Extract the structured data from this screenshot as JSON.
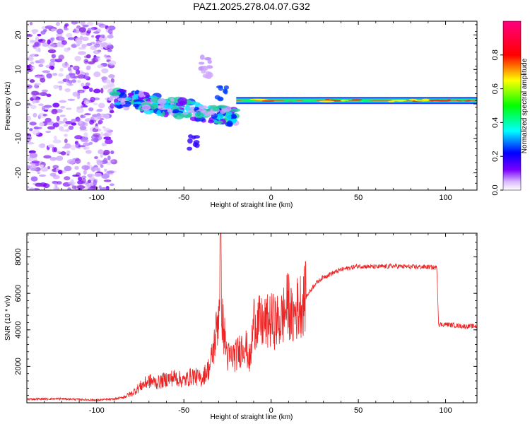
{
  "title": "PAZ1.2025.278.04.07.G32",
  "chart_data": [
    {
      "type": "heatmap",
      "name": "spectrogram",
      "xlabel": "Height of straight line (km)",
      "ylabel": "Frequency (Hz)",
      "xlim": [
        -140,
        118
      ],
      "ylim": [
        -25,
        24
      ],
      "xticks": [
        -100,
        -50,
        0,
        50,
        100
      ],
      "yticks": [
        -20,
        -10,
        0,
        10,
        20
      ],
      "xtick_labels": [
        "-100",
        "-50",
        "0",
        "50",
        "100"
      ],
      "ytick_labels": [
        "-20",
        "-10",
        "0",
        "10",
        "20"
      ],
      "colorbar": {
        "label": "Normalized spectral amplitude",
        "range": [
          0,
          1
        ],
        "ticks": [
          0.0,
          0.2,
          0.4,
          0.6,
          0.8
        ],
        "tick_labels": [
          "0.0",
          "0.2",
          "0.4",
          "0.6",
          "0.8"
        ],
        "colormap": [
          "#ffffff",
          "#7a00ff",
          "#0000ff",
          "#00ffff",
          "#00ff00",
          "#ffff00",
          "#ff0000",
          "#ff0080"
        ]
      },
      "features": [
        {
          "name": "noise-region",
          "x_range": [
            -140,
            -90
          ],
          "f_range": [
            -25,
            24
          ],
          "amplitude": 0.1
        },
        {
          "name": "scattered-energy",
          "x_range": [
            -90,
            -20
          ],
          "f_range": [
            -6,
            4
          ],
          "amplitude": 0.3
        },
        {
          "name": "tone-line",
          "x_range": [
            -20,
            118
          ],
          "frequency": 1,
          "amplitude": 0.8
        }
      ]
    },
    {
      "type": "line",
      "name": "snr",
      "xlabel": "Height of straight line (km)",
      "ylabel": "SNR (10 * v/v)",
      "xlim": [
        -140,
        118
      ],
      "ylim": [
        0,
        9300
      ],
      "xticks": [
        -100,
        -50,
        0,
        50,
        100
      ],
      "yticks": [
        2000,
        4000,
        6000,
        8000
      ],
      "xtick_labels": [
        "-100",
        "-50",
        "0",
        "50",
        "100"
      ],
      "ytick_labels": [
        "2000",
        "4000",
        "6000",
        "8000"
      ],
      "color": "#ee2222",
      "series": [
        {
          "name": "SNR",
          "x": [
            -140,
            -120,
            -100,
            -90,
            -85,
            -80,
            -75,
            -70,
            -65,
            -60,
            -55,
            -50,
            -45,
            -40,
            -35,
            -32,
            -30,
            -29,
            -28,
            -25,
            -20,
            -15,
            -12,
            -10,
            -5,
            0,
            5,
            8,
            10,
            12,
            15,
            20,
            25,
            30,
            40,
            50,
            60,
            70,
            80,
            90,
            95,
            96,
            100,
            110,
            118
          ],
          "values": [
            200,
            220,
            150,
            200,
            300,
            500,
            900,
            1200,
            1100,
            1300,
            1400,
            1200,
            1500,
            1300,
            2000,
            3500,
            5000,
            9000,
            4500,
            2500,
            2600,
            3300,
            2200,
            4500,
            4300,
            4500,
            4400,
            5000,
            5500,
            4500,
            5200,
            5800,
            6500,
            6900,
            7300,
            7500,
            7450,
            7500,
            7450,
            7450,
            7400,
            4300,
            4300,
            4200,
            4200
          ]
        }
      ]
    }
  ]
}
